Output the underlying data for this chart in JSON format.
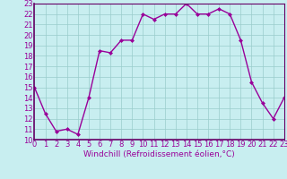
{
  "x": [
    0,
    1,
    2,
    3,
    4,
    5,
    6,
    7,
    8,
    9,
    10,
    11,
    12,
    13,
    14,
    15,
    16,
    17,
    18,
    19,
    20,
    21,
    22,
    23
  ],
  "y": [
    15,
    12.5,
    10.8,
    11.0,
    10.5,
    14.0,
    18.5,
    18.3,
    19.5,
    19.5,
    22.0,
    21.5,
    22.0,
    22.0,
    23.0,
    22.0,
    22.0,
    22.5,
    22.0,
    19.5,
    15.5,
    13.5,
    12.0,
    14.0
  ],
  "line_color": "#990099",
  "marker": "D",
  "marker_size": 2.0,
  "line_width": 1.0,
  "xlabel": "Windchill (Refroidissement éolien,°C)",
  "xlabel_fontsize": 6.5,
  "ylim": [
    10,
    23
  ],
  "xlim": [
    0,
    23
  ],
  "yticks": [
    10,
    11,
    12,
    13,
    14,
    15,
    16,
    17,
    18,
    19,
    20,
    21,
    22,
    23
  ],
  "xticks": [
    0,
    1,
    2,
    3,
    4,
    5,
    6,
    7,
    8,
    9,
    10,
    11,
    12,
    13,
    14,
    15,
    16,
    17,
    18,
    19,
    20,
    21,
    22,
    23
  ],
  "background_color": "#c8eef0",
  "grid_color": "#99cccc",
  "tick_fontsize": 6.0,
  "spine_color": "#660066"
}
